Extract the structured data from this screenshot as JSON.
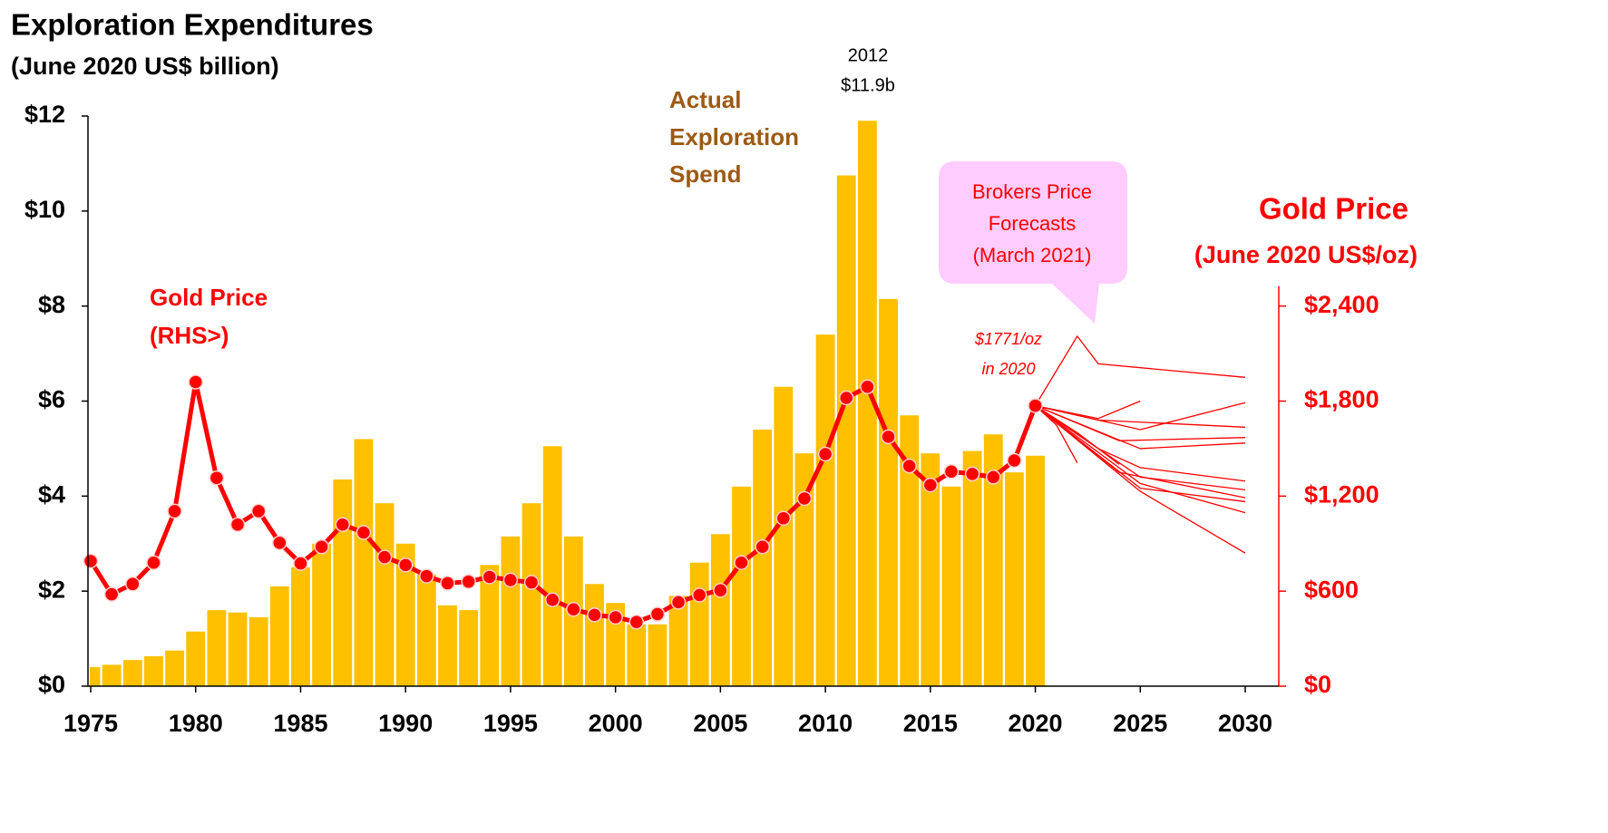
{
  "chart_data": {
    "type": "bar",
    "title": "Exploration Expenditures",
    "subtitle": "(June 2020 US$ billion)",
    "y2_title": "Gold Price",
    "y2_subtitle": "(June 2020 US$/oz)",
    "xlim": [
      1975,
      2030
    ],
    "xticks": [
      1975,
      1980,
      1985,
      1990,
      1995,
      2000,
      2005,
      2010,
      2015,
      2020,
      2025,
      2030
    ],
    "ylim": [
      0,
      12
    ],
    "yticks": [
      {
        "value": 0,
        "label": "$0"
      },
      {
        "value": 2,
        "label": "$2"
      },
      {
        "value": 4,
        "label": "$4"
      },
      {
        "value": 6,
        "label": "$6"
      },
      {
        "value": 8,
        "label": "$8"
      },
      {
        "value": 10,
        "label": "$10"
      },
      {
        "value": 12,
        "label": "$12"
      }
    ],
    "y2lim": [
      0,
      3600
    ],
    "y2ticks": [
      {
        "value": 0,
        "label": "$0"
      },
      {
        "value": 600,
        "label": "$600"
      },
      {
        "value": 1200,
        "label": "$1,200"
      },
      {
        "value": 1800,
        "label": "$1,800"
      },
      {
        "value": 2400,
        "label": "$2,400"
      }
    ],
    "series": [
      {
        "name": [
          "Actual",
          "Exploration",
          "Spend"
        ],
        "type": "bar",
        "color": "#ffc000",
        "x": [
          1975,
          1976,
          1977,
          1978,
          1979,
          1980,
          1981,
          1982,
          1983,
          1984,
          1985,
          1986,
          1987,
          1988,
          1989,
          1990,
          1991,
          1992,
          1993,
          1994,
          1995,
          1996,
          1997,
          1998,
          1999,
          2000,
          2001,
          2002,
          2003,
          2004,
          2005,
          2006,
          2007,
          2008,
          2009,
          2010,
          2011,
          2012,
          2013,
          2014,
          2015,
          2016,
          2017,
          2018,
          2019,
          2020
        ],
        "values": [
          0.4,
          0.45,
          0.55,
          0.63,
          0.75,
          1.15,
          1.6,
          1.55,
          1.45,
          2.1,
          2.5,
          3.0,
          4.35,
          5.2,
          3.85,
          3.0,
          2.35,
          1.7,
          1.6,
          2.55,
          3.15,
          3.85,
          5.05,
          3.15,
          2.15,
          1.75,
          1.3,
          1.3,
          1.9,
          2.6,
          3.2,
          4.2,
          5.4,
          6.3,
          4.9,
          7.4,
          10.75,
          11.9,
          8.15,
          5.7,
          4.9,
          4.2,
          4.95,
          5.3,
          4.5,
          4.85
        ]
      },
      {
        "name": [
          "Gold Price",
          "(RHS>)"
        ],
        "type": "line",
        "axis": "y2",
        "color": "#ff0000",
        "x": [
          1975,
          1976,
          1977,
          1978,
          1979,
          1980,
          1981,
          1982,
          1983,
          1984,
          1985,
          1986,
          1987,
          1988,
          1989,
          1990,
          1991,
          1992,
          1993,
          1994,
          1995,
          1996,
          1997,
          1998,
          1999,
          2000,
          2001,
          2002,
          2003,
          2004,
          2005,
          2006,
          2007,
          2008,
          2009,
          2010,
          2011,
          2012,
          2013,
          2014,
          2015,
          2016,
          2017,
          2018,
          2019,
          2020
        ],
        "values": [
          790,
          580,
          645,
          780,
          1105,
          1920,
          1315,
          1020,
          1105,
          905,
          775,
          880,
          1020,
          970,
          815,
          765,
          695,
          650,
          660,
          690,
          670,
          655,
          545,
          485,
          450,
          435,
          405,
          455,
          530,
          575,
          605,
          780,
          880,
          1060,
          1185,
          1465,
          1820,
          1890,
          1575,
          1390,
          1270,
          1355,
          1340,
          1320,
          1425,
          1771
        ]
      },
      {
        "type": "forecast",
        "axis": "y2",
        "color": "#ff0000",
        "x": [
          2020,
          2022,
          2023,
          2030
        ],
        "values": [
          1771,
          2210,
          2035,
          1950
        ]
      },
      {
        "type": "forecast",
        "axis": "y2",
        "color": "#ff0000",
        "x": [
          2020,
          2023,
          2025
        ],
        "values": [
          1771,
          1690,
          1800
        ]
      },
      {
        "type": "forecast",
        "axis": "y2",
        "color": "#ff0000",
        "x": [
          2020,
          2025,
          2030
        ],
        "values": [
          1771,
          1620,
          1790
        ]
      },
      {
        "type": "forecast",
        "axis": "y2",
        "color": "#ff0000",
        "x": [
          2020,
          2023,
          2030
        ],
        "values": [
          1771,
          1680,
          1635
        ]
      },
      {
        "type": "forecast",
        "axis": "y2",
        "color": "#ff0000",
        "x": [
          2020,
          2024,
          2030
        ],
        "values": [
          1771,
          1550,
          1570
        ]
      },
      {
        "type": "forecast",
        "axis": "y2",
        "color": "#ff0000",
        "x": [
          2020,
          2025,
          2030
        ],
        "values": [
          1771,
          1500,
          1535
        ]
      },
      {
        "type": "forecast",
        "axis": "y2",
        "color": "#ff0000",
        "x": [
          2020,
          2023,
          2025,
          2030
        ],
        "values": [
          1771,
          1500,
          1380,
          1295
        ]
      },
      {
        "type": "forecast",
        "axis": "y2",
        "color": "#ff0000",
        "x": [
          2020,
          2025,
          2030
        ],
        "values": [
          1771,
          1320,
          1240
        ]
      },
      {
        "type": "forecast",
        "axis": "y2",
        "color": "#ff0000",
        "x": [
          2020,
          2024,
          2030
        ],
        "values": [
          1771,
          1350,
          1190
        ]
      },
      {
        "type": "forecast",
        "axis": "y2",
        "color": "#ff0000",
        "x": [
          2020,
          2025,
          2030
        ],
        "values": [
          1771,
          1250,
          1165
        ]
      },
      {
        "type": "forecast",
        "axis": "y2",
        "color": "#ff0000",
        "x": [
          2020,
          2025,
          2030
        ],
        "values": [
          1771,
          1280,
          1095
        ]
      },
      {
        "type": "forecast",
        "axis": "y2",
        "color": "#ff0000",
        "x": [
          2020,
          2025,
          2030
        ],
        "values": [
          1771,
          1230,
          840
        ]
      },
      {
        "type": "forecast",
        "axis": "y2",
        "color": "#ff0000",
        "x": [
          2020,
          2021,
          2022
        ],
        "values": [
          1771,
          1650,
          1410
        ]
      },
      {
        "type": "forecast",
        "axis": "y2",
        "color": "#ff0000",
        "x": [
          2020,
          2022,
          2024
        ],
        "values": [
          1771,
          1600,
          1400
        ]
      }
    ],
    "annotations": [
      {
        "text": [
          "2012",
          "$11.9b"
        ]
      },
      {
        "text": [
          "$1771/oz",
          "in 2020"
        ]
      },
      {
        "text": [
          "Brokers Price",
          "Forecasts",
          "(March 2021)"
        ]
      }
    ]
  }
}
